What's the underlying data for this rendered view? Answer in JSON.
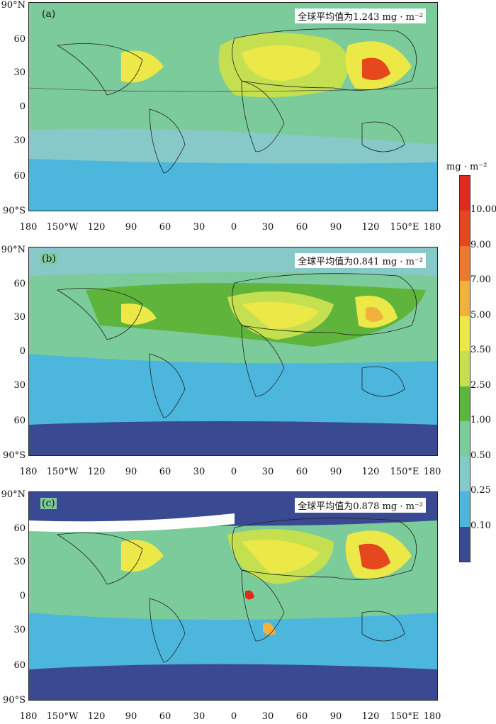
{
  "panels": [
    {
      "tag": "(a)",
      "mean": "全球平均值为1.243 mg · m⁻²"
    },
    {
      "tag": "(b)",
      "mean": "全球平均值为0.841 mg · m⁻²"
    },
    {
      "tag": "(c)",
      "mean": "全球平均值为0.878 mg · m⁻²"
    }
  ],
  "lat_labels": [
    "90°N",
    "60",
    "30",
    "0",
    "30",
    "60",
    "90°S"
  ],
  "lon_labels": [
    "180",
    "150°W",
    "120",
    "90",
    "60",
    "30",
    "0",
    "30",
    "60",
    "90",
    "120",
    "150°E",
    "180"
  ],
  "colorbar": {
    "unit": "mg · m⁻²",
    "ticks": [
      "10.00",
      "9.00",
      "7.00",
      "5.00",
      "3.50",
      "2.50",
      "1.00",
      "0.50",
      "0.25",
      "0.10"
    ],
    "colors": [
      "#e02a1e",
      "#e4481c",
      "#ec7a2c",
      "#f2b13c",
      "#ece848",
      "#c4df50",
      "#5fb43c",
      "#7ccb9a",
      "#87c9c8",
      "#4cb6dc",
      "#3a4a92"
    ]
  }
}
